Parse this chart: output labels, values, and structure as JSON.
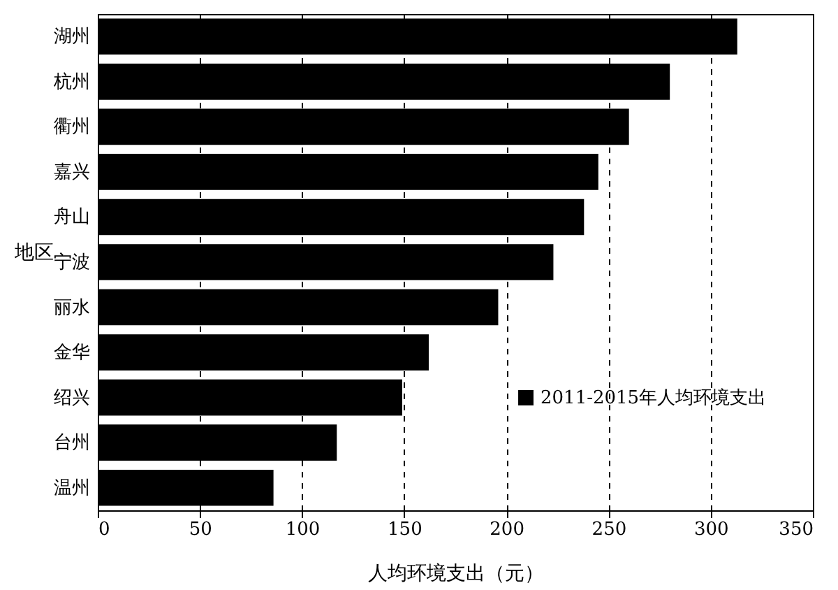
{
  "chart_data": {
    "type": "bar",
    "orientation": "horizontal",
    "categories": [
      "湖州",
      "杭州",
      "衢州",
      "嘉兴",
      "舟山",
      "宁波",
      "丽水",
      "金华",
      "绍兴",
      "台州",
      "温州"
    ],
    "series": [
      {
        "name": "2011-2015年人均环境支出",
        "color": "#000000",
        "values": [
          313,
          280,
          260,
          245,
          238,
          223,
          196,
          162,
          149,
          117,
          86
        ]
      }
    ],
    "xlim": [
      0,
      350
    ],
    "xticks": [
      0,
      50,
      100,
      150,
      200,
      250,
      300,
      350
    ],
    "xlabel": "人均环境支出（元）",
    "ylabel": "地区",
    "grid": "x",
    "legend": "right"
  }
}
